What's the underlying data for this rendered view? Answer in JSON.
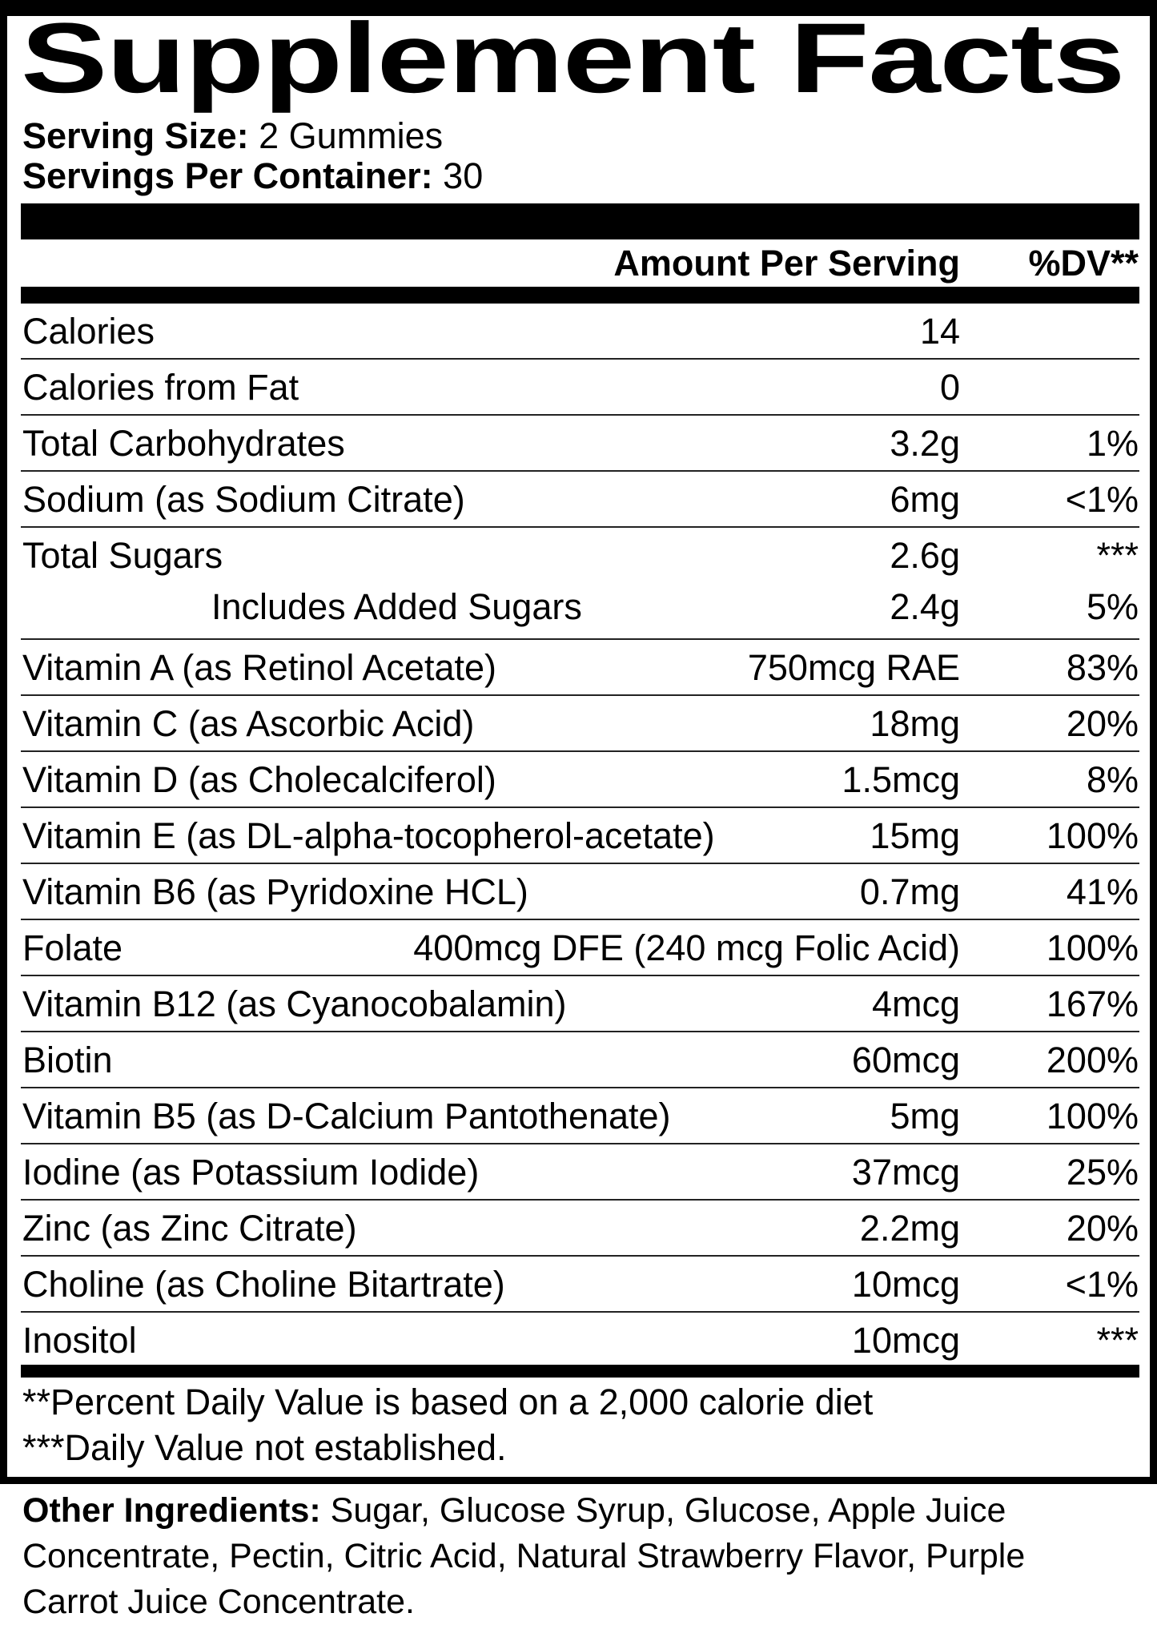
{
  "title": "Supplement Facts",
  "serving": {
    "size_label": "Serving Size:",
    "size_value": "2 Gummies",
    "per_container_label": "Servings Per Container:",
    "per_container_value": "30"
  },
  "header": {
    "amount_label": "Amount Per Serving",
    "dv_label": "%DV**"
  },
  "nutrients": [
    {
      "name": "Calories",
      "amount": "14",
      "dv": ""
    },
    {
      "name": "Calories from Fat",
      "amount": "0",
      "dv": ""
    },
    {
      "name": "Total Carbohydrates",
      "amount": "3.2g",
      "dv": "1%"
    },
    {
      "name": "Sodium (as Sodium Citrate)",
      "amount": "6mg",
      "dv": "<1%"
    },
    {
      "name": "Total Sugars",
      "amount": "2.6g",
      "dv": "***",
      "sub": {
        "name": "Includes Added Sugars",
        "amount": "2.4g",
        "dv": "5%"
      }
    },
    {
      "name": "Vitamin A (as Retinol Acetate)",
      "amount": "750mcg RAE",
      "dv": "83%"
    },
    {
      "name": "Vitamin C (as Ascorbic Acid)",
      "amount": "18mg",
      "dv": "20%"
    },
    {
      "name": "Vitamin D (as Cholecalciferol)",
      "amount": "1.5mcg",
      "dv": "8%"
    },
    {
      "name": "Vitamin E (as DL-alpha-tocopherol-acetate)",
      "amount": "15mg",
      "dv": "100%"
    },
    {
      "name": "Vitamin B6 (as Pyridoxine HCL)",
      "amount": "0.7mg",
      "dv": "41%"
    },
    {
      "name": "Folate",
      "amount": "400mcg DFE (240 mcg Folic Acid)",
      "dv": "100%"
    },
    {
      "name": "Vitamin B12 (as Cyanocobalamin)",
      "amount": "4mcg",
      "dv": "167%"
    },
    {
      "name": "Biotin",
      "amount": "60mcg",
      "dv": "200%"
    },
    {
      "name": "Vitamin B5 (as D-Calcium Pantothenate)",
      "amount": "5mg",
      "dv": "100%"
    },
    {
      "name": "Iodine (as Potassium Iodide)",
      "amount": "37mcg",
      "dv": "25%"
    },
    {
      "name": "Zinc (as Zinc Citrate)",
      "amount": "2.2mg",
      "dv": "20%"
    },
    {
      "name": "Choline (as Choline Bitartrate)",
      "amount": "10mcg",
      "dv": "<1%"
    },
    {
      "name": "Inositol",
      "amount": "10mcg",
      "dv": "***"
    }
  ],
  "footnotes": [
    "**Percent Daily Value is based on a 2,000 calorie diet",
    "***Daily Value not established."
  ],
  "other_ingredients": {
    "label": "Other Ingredients:",
    "lines": [
      "Sugar, Glucose Syrup, Glucose, Apple Juice",
      "Concentrate, Pectin, Citric Acid, Natural Strawberry Flavor, Purple",
      "Carrot Juice Concentrate."
    ]
  }
}
